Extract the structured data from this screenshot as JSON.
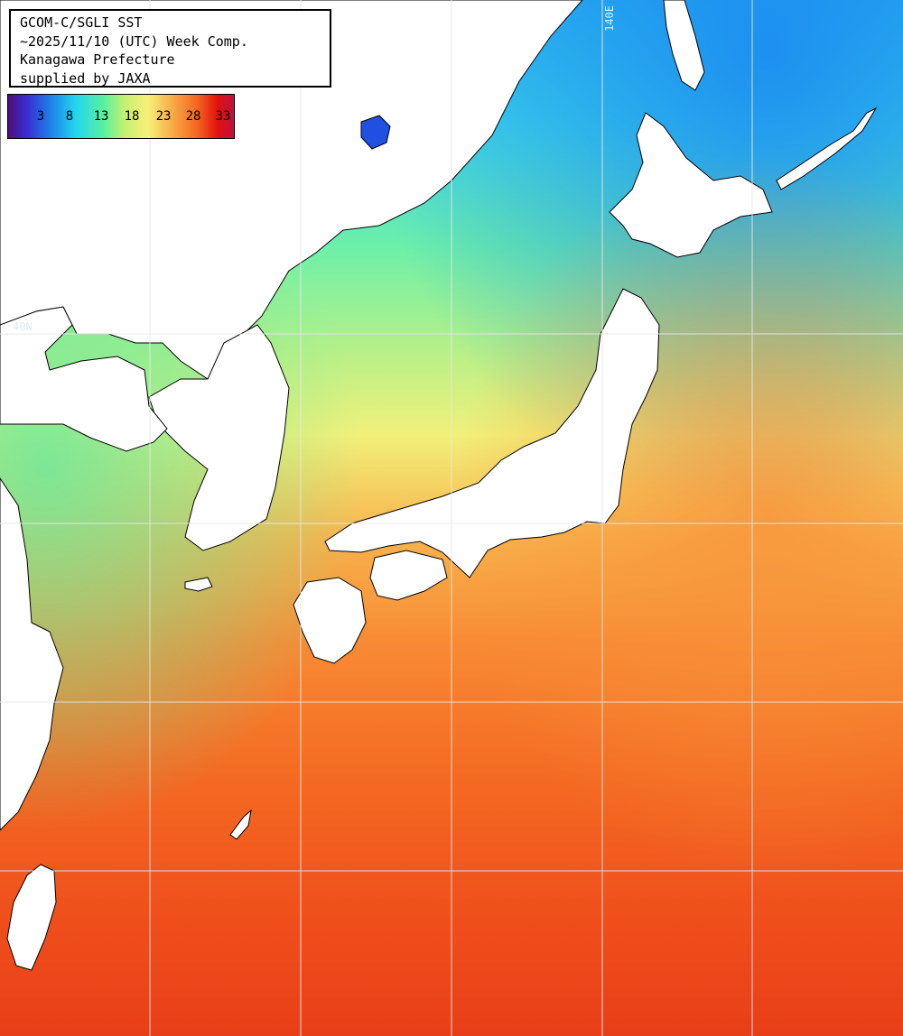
{
  "info": {
    "line1": "GCOM-C/SGLI SST",
    "line2": "~2025/11/10 (UTC) Week Comp.",
    "line3": "Kanagawa Prefecture",
    "line4": "supplied by JAXA"
  },
  "colorbar": {
    "labels": [
      "3",
      "8",
      "13",
      "18",
      "23",
      "28",
      "33"
    ],
    "colors": [
      "#4b0f7a",
      "#3b2ad0",
      "#1f7ae8",
      "#22d7f0",
      "#56f0a0",
      "#c8f070",
      "#f8f07a",
      "#f8b04a",
      "#f4641e",
      "#e01010",
      "#c01040"
    ]
  },
  "grid_labels": {
    "lat": "40N",
    "lon": "140E"
  },
  "colors": {
    "land": "#ffffff",
    "grid": "#e8e8e8",
    "coast": "#000000"
  }
}
